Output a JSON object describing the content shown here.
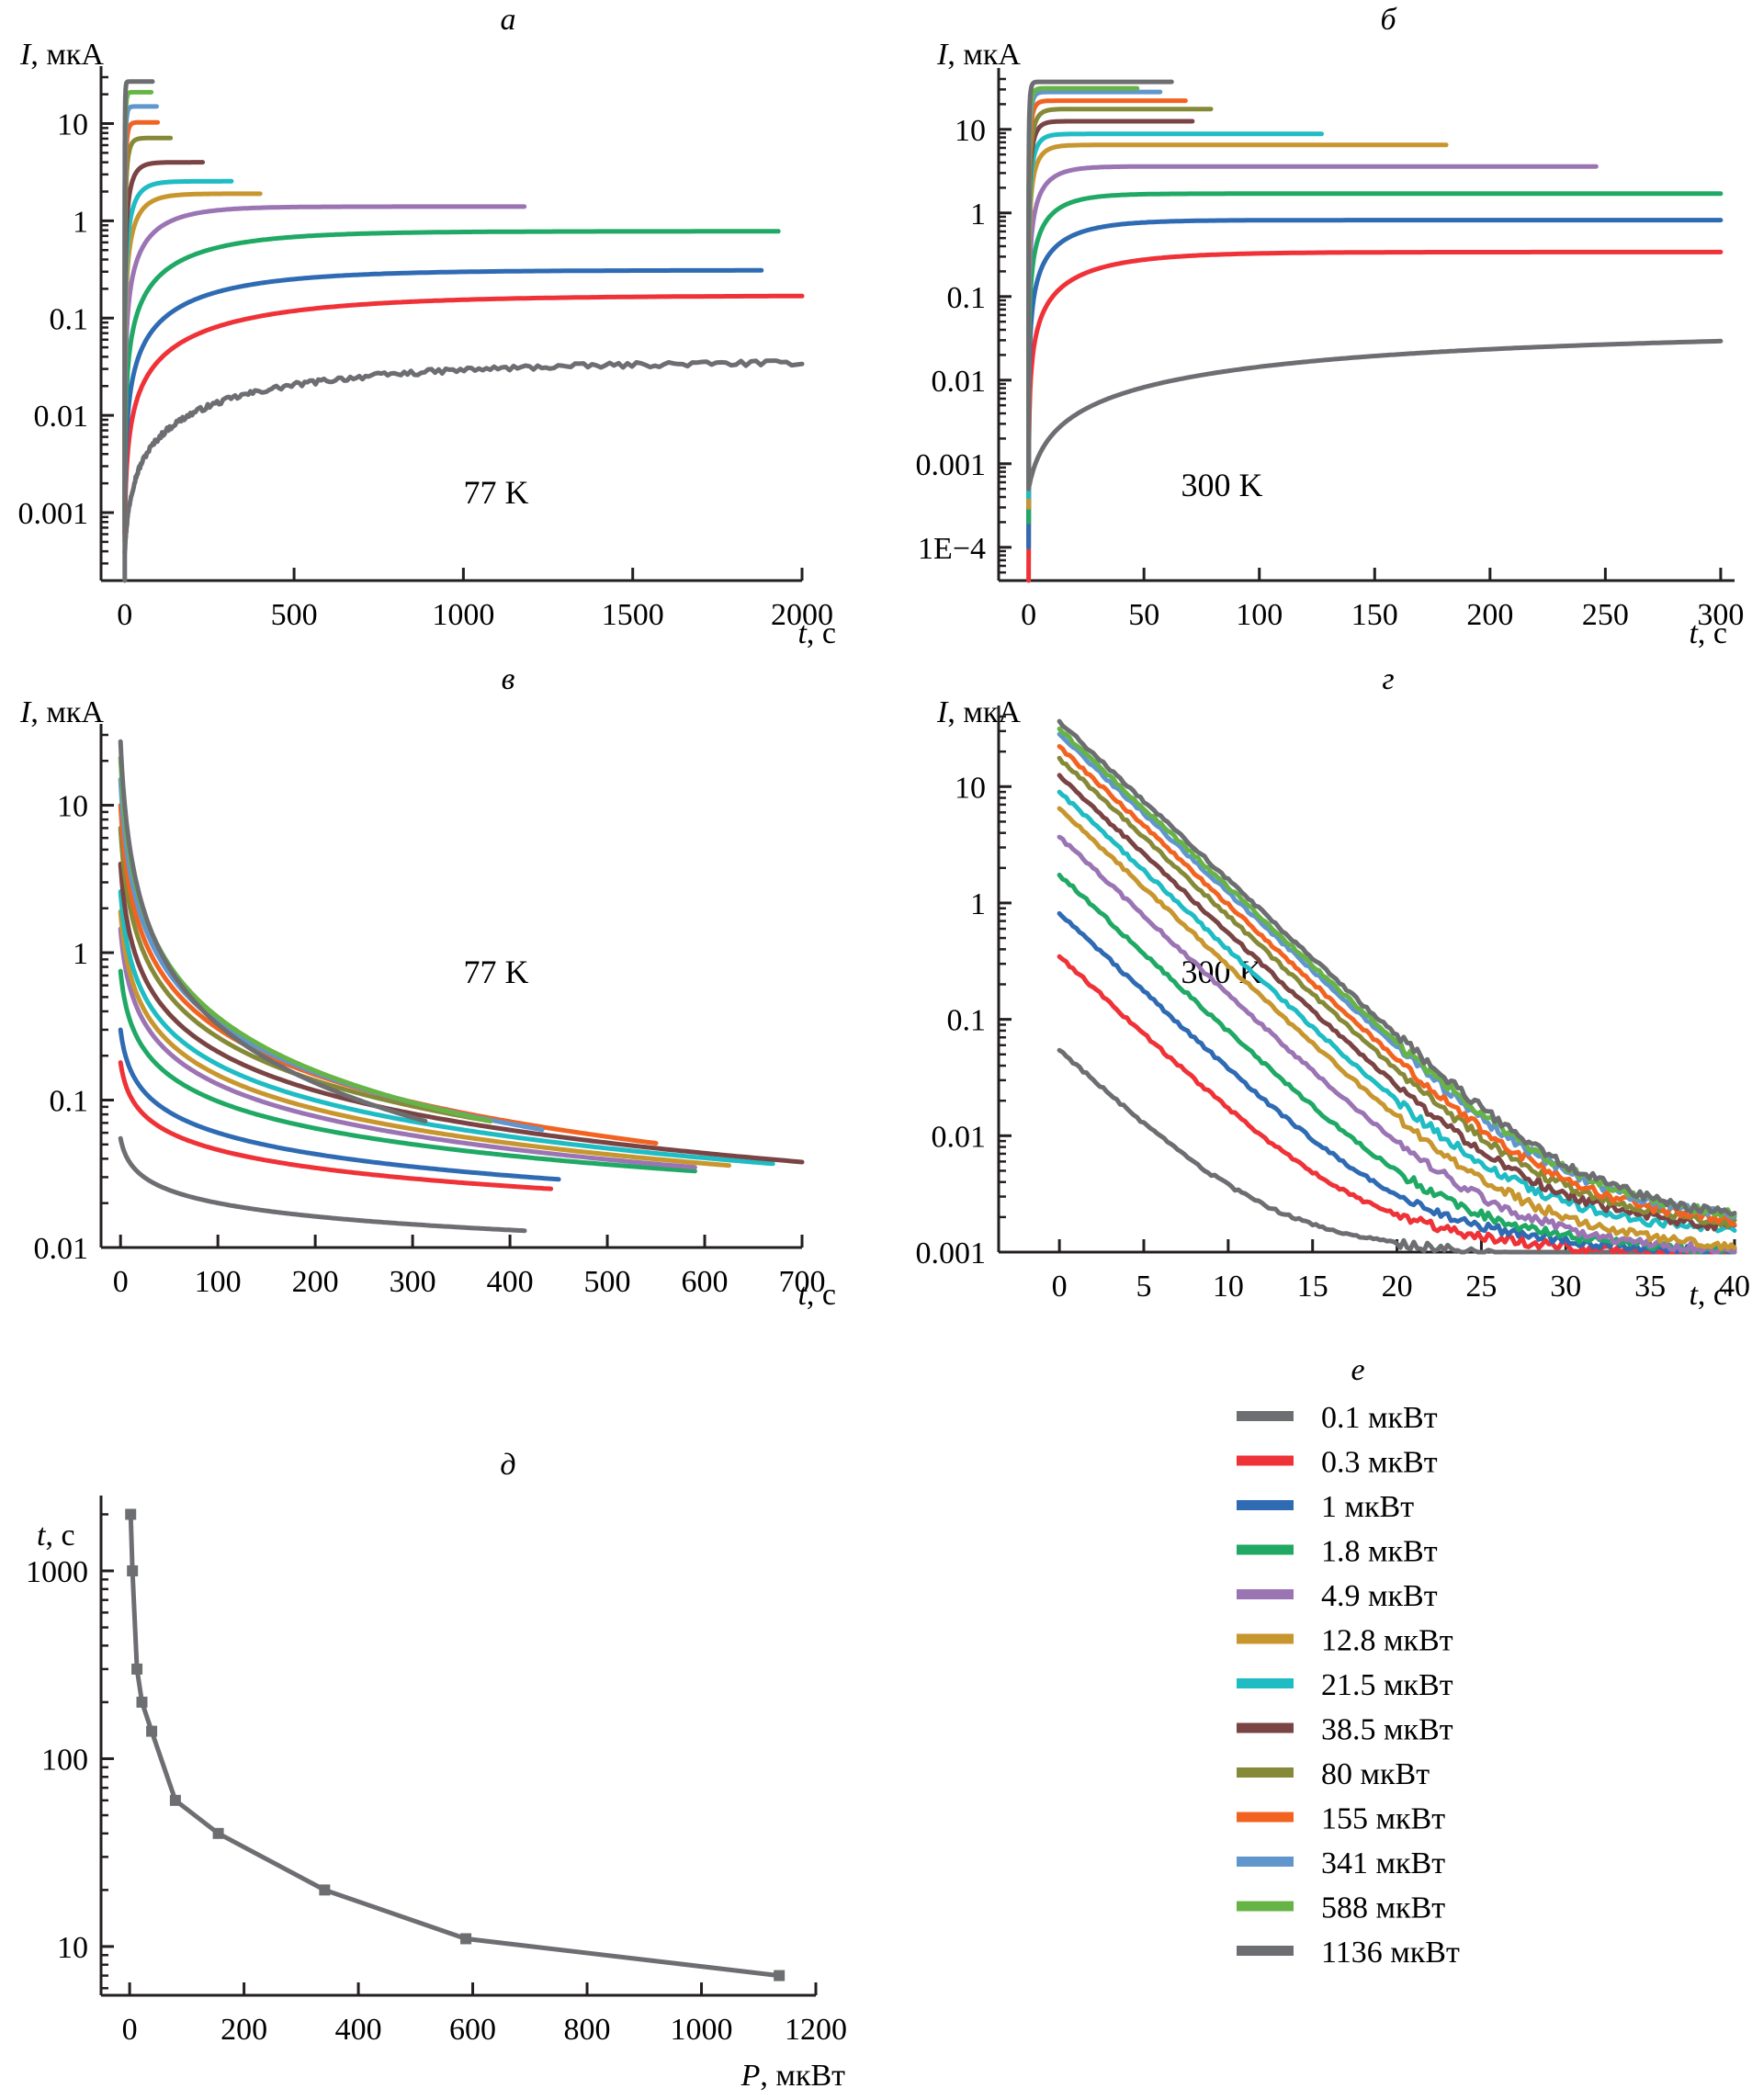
{
  "legend": {
    "panel_letter": "е",
    "items": [
      {
        "label": "0.1 мкВт",
        "color": "#6d6e71"
      },
      {
        "label": "0.3 мкВт",
        "color": "#ef3237"
      },
      {
        "label": "1 мкВт",
        "color": "#2f6bb3"
      },
      {
        "label": "1.8 мкВт",
        "color": "#1fa964"
      },
      {
        "label": "4.9 мкВт",
        "color": "#9b74b4"
      },
      {
        "label": "12.8 мкВт",
        "color": "#c8962e"
      },
      {
        "label": "21.5 мкВт",
        "color": "#1fbcc4"
      },
      {
        "label": "38.5 мкВт",
        "color": "#7a4444"
      },
      {
        "label": "80 мкВт",
        "color": "#868a38"
      },
      {
        "label": "155 мкВт",
        "color": "#f26322"
      },
      {
        "label": "341 мкВт",
        "color": "#6196cd"
      },
      {
        "label": "588 мкВт",
        "color": "#67b446"
      },
      {
        "label": "1136 мкВт",
        "color": "#6d6e71"
      }
    ]
  },
  "chart_data": [
    {
      "id": "a",
      "panel_letter": "а",
      "type": "line",
      "title": "",
      "annotation": "77 K",
      "ylabel_var": "I",
      "ylabel_unit": ", мкА",
      "xlabel_var": "t",
      "xlabel_unit": ", с",
      "yscale": "log",
      "ylim": [
        0.0002,
        30
      ],
      "xlim": [
        -70,
        2000
      ],
      "xticks": [
        0,
        500,
        1000,
        1500,
        2000
      ],
      "xtick_labels": [
        "0",
        "500",
        "1000",
        "1500",
        "2000"
      ],
      "yticks": [
        0.001,
        0.01,
        0.1,
        1,
        10
      ],
      "ytick_labels": [
        "0.001",
        "0.01",
        "0.1",
        "1",
        "10"
      ],
      "model": "rise",
      "series": [
        {
          "name": "0.1 мкВт",
          "plateau": 0.036,
          "tau": 600,
          "t_end": 2000,
          "i0": 0.0004
        },
        {
          "name": "0.3 мкВт",
          "plateau": 0.17,
          "tau": 420,
          "t_end": 2000,
          "i0": 0.0006
        },
        {
          "name": "1 мкВт",
          "plateau": 0.31,
          "tau": 300,
          "t_end": 1880,
          "i0": 0.0007
        },
        {
          "name": "1.8 мкВт",
          "plateau": 0.78,
          "tau": 240,
          "t_end": 1930,
          "i0": 0.0008
        },
        {
          "name": "4.9 мкВт",
          "plateau": 1.4,
          "tau": 110,
          "t_end": 1180,
          "i0": 0.0009
        },
        {
          "name": "12.8 мкВт",
          "plateau": 1.9,
          "tau": 45,
          "t_end": 400,
          "i0": 0.001
        },
        {
          "name": "21.5 мкВт",
          "plateau": 2.55,
          "tau": 32,
          "t_end": 315,
          "i0": 0.001
        },
        {
          "name": "38.5 мкВт",
          "plateau": 4.0,
          "tau": 22,
          "t_end": 230,
          "i0": 0.001
        },
        {
          "name": "80 мкВт",
          "plateau": 7.1,
          "tau": 10,
          "t_end": 135,
          "i0": 0.0005
        },
        {
          "name": "155 мкВт",
          "plateau": 10.3,
          "tau": 6,
          "t_end": 97,
          "i0": 0.0006
        },
        {
          "name": "341 мкВт",
          "plateau": 15,
          "tau": 4,
          "t_end": 94,
          "i0": 0.0008
        },
        {
          "name": "588 мкВт",
          "plateau": 21,
          "tau": 3,
          "t_end": 78,
          "i0": 0.0008
        },
        {
          "name": "1136 мкВт",
          "plateau": 27,
          "tau": 1.5,
          "t_end": 82,
          "i0": 0.0002
        }
      ]
    },
    {
      "id": "b",
      "panel_letter": "б",
      "type": "line",
      "title": "",
      "annotation": "300 K",
      "ylabel_var": "I",
      "ylabel_unit": ", мкА",
      "xlabel_var": "t",
      "xlabel_unit": ", с",
      "yscale": "log",
      "ylim": [
        4e-05,
        40
      ],
      "xlim": [
        -13,
        306
      ],
      "xticks": [
        0,
        50,
        100,
        150,
        200,
        250,
        300
      ],
      "xtick_labels": [
        "0",
        "50",
        "100",
        "150",
        "200",
        "250",
        "300"
      ],
      "yticks": [
        0.0001,
        0.001,
        0.01,
        0.1,
        1,
        10
      ],
      "ytick_labels": [
        "1E−4",
        "0.001",
        "0.01",
        "0.1",
        "1",
        "10"
      ],
      "model": "rise",
      "series": [
        {
          "name": "0.1 мкВт",
          "plateau": 0.04,
          "tau": 230,
          "t_end": 300,
          "i0": 0.0005
        },
        {
          "name": "0.3 мкВт",
          "plateau": 0.34,
          "tau": 30,
          "t_end": 300,
          "i0": 4e-05
        },
        {
          "name": "1 мкВт",
          "plateau": 0.82,
          "tau": 18,
          "t_end": 300,
          "i0": 0.0001
        },
        {
          "name": "1.8 мкВт",
          "plateau": 1.7,
          "tau": 12,
          "t_end": 300,
          "i0": 0.0002
        },
        {
          "name": "4.9 мкВт",
          "plateau": 3.6,
          "tau": 8,
          "t_end": 246,
          "i0": 0.0003
        },
        {
          "name": "12.8 мкВт",
          "plateau": 6.5,
          "tau": 4,
          "t_end": 181,
          "i0": 0.0003
        },
        {
          "name": "21.5 мкВт",
          "plateau": 8.8,
          "tau": 3,
          "t_end": 127,
          "i0": 0.0004
        },
        {
          "name": "38.5 мкВт",
          "plateau": 12.5,
          "tau": 2.5,
          "t_end": 71,
          "i0": 0.0005
        },
        {
          "name": "80 мкВт",
          "plateau": 17.5,
          "tau": 2.5,
          "t_end": 79,
          "i0": 0.0005
        },
        {
          "name": "155 мкВт",
          "plateau": 22,
          "tau": 1.5,
          "t_end": 68,
          "i0": 0.0005
        },
        {
          "name": "341 мкВт",
          "plateau": 28,
          "tau": 1.2,
          "t_end": 57,
          "i0": 0.0005
        },
        {
          "name": "588 мкВт",
          "plateau": 31,
          "tau": 1,
          "t_end": 47,
          "i0": 0.0005
        },
        {
          "name": "1136 мкВт",
          "plateau": 37,
          "tau": 0.6,
          "t_end": 62,
          "i0": 0.0005
        }
      ]
    },
    {
      "id": "v",
      "panel_letter": "в",
      "type": "line",
      "title": "",
      "annotation": "77 K",
      "ylabel_var": "I",
      "ylabel_unit": ", мкА",
      "xlabel_var": "t",
      "xlabel_unit": ", с",
      "yscale": "log",
      "ylim": [
        0.01,
        30
      ],
      "xlim": [
        -20,
        700
      ],
      "xticks": [
        0,
        100,
        200,
        300,
        400,
        500,
        600,
        700
      ],
      "xtick_labels": [
        "0",
        "100",
        "200",
        "300",
        "400",
        "500",
        "600",
        "700"
      ],
      "yticks": [
        0.01,
        0.1,
        1,
        10
      ],
      "ytick_labels": [
        "0.01",
        "0.1",
        "1",
        "10"
      ],
      "model": "decay_power",
      "series": [
        {
          "name": "0.1 мкВт",
          "i_start": 0.055,
          "i_end": 0.013,
          "t_end": 415
        },
        {
          "name": "0.3 мкВт",
          "i_start": 0.18,
          "i_end": 0.025,
          "t_end": 442
        },
        {
          "name": "1 мкВт",
          "i_start": 0.3,
          "i_end": 0.029,
          "t_end": 450
        },
        {
          "name": "1.8 мкВт",
          "i_start": 0.75,
          "i_end": 0.033,
          "t_end": 590
        },
        {
          "name": "4.9 мкВт",
          "i_start": 1.45,
          "i_end": 0.035,
          "t_end": 590
        },
        {
          "name": "12.8 мкВт",
          "i_start": 1.9,
          "i_end": 0.036,
          "t_end": 625
        },
        {
          "name": "21.5 мкВт",
          "i_start": 2.6,
          "i_end": 0.037,
          "t_end": 670
        },
        {
          "name": "38.5 мкВт",
          "i_start": 4.0,
          "i_end": 0.038,
          "t_end": 700
        },
        {
          "name": "80 мкВт",
          "i_start": 7.0,
          "i_end": 0.072,
          "t_end": 380
        },
        {
          "name": "155 мкВт",
          "i_start": 10.0,
          "i_end": 0.051,
          "t_end": 550
        },
        {
          "name": "341 мкВт",
          "i_start": 15.0,
          "i_end": 0.063,
          "t_end": 433
        },
        {
          "name": "588 мкВт",
          "i_start": 21.0,
          "i_end": 0.072,
          "t_end": 380
        },
        {
          "name": "1136 мкВт",
          "i_start": 27.0,
          "i_end": 0.072,
          "t_end": 313
        }
      ]
    },
    {
      "id": "g",
      "panel_letter": "г",
      "type": "line",
      "title": "",
      "annotation": "300 K",
      "ylabel_var": "I",
      "ylabel_unit": ", мкА",
      "xlabel_var": "t",
      "xlabel_unit": ", с",
      "yscale": "log",
      "ylim": [
        0.001,
        40
      ],
      "xlim": [
        -3.6,
        40
      ],
      "xticks": [
        0,
        5,
        10,
        15,
        20,
        25,
        30,
        35,
        40
      ],
      "xtick_labels": [
        "0",
        "5",
        "10",
        "15",
        "20",
        "25",
        "30",
        "35",
        "40"
      ],
      "yticks": [
        0.001,
        0.01,
        0.1,
        1,
        10
      ],
      "ytick_labels": [
        "0.001",
        "0.01",
        "0.1",
        "1",
        "10"
      ],
      "model": "decay_noisy",
      "series": [
        {
          "name": "0.1 мкВт",
          "i_start": 0.055,
          "i_mid": 0.002,
          "i_end": 0.0008
        },
        {
          "name": "0.3 мкВт",
          "i_start": 0.35,
          "i_mid": 0.0028,
          "i_end": 0.0009
        },
        {
          "name": "1 мкВт",
          "i_start": 0.82,
          "i_mid": 0.003,
          "i_end": 0.001
        },
        {
          "name": "1.8 мкВт",
          "i_start": 1.75,
          "i_mid": 0.0032,
          "i_end": 0.001
        },
        {
          "name": "4.9 мкВт",
          "i_start": 3.7,
          "i_mid": 0.0036,
          "i_end": 0.001
        },
        {
          "name": "12.8 мкВт",
          "i_start": 6.5,
          "i_mid": 0.0042,
          "i_end": 0.0011
        },
        {
          "name": "21.5 мкВт",
          "i_start": 9.0,
          "i_mid": 0.0055,
          "i_end": 0.0015
        },
        {
          "name": "38.5 мкВт",
          "i_start": 12.5,
          "i_mid": 0.006,
          "i_end": 0.0016
        },
        {
          "name": "80 мкВт",
          "i_start": 17.5,
          "i_mid": 0.0065,
          "i_end": 0.0017
        },
        {
          "name": "155 мкВт",
          "i_start": 22.0,
          "i_mid": 0.007,
          "i_end": 0.0018
        },
        {
          "name": "341 мкВт",
          "i_start": 28.0,
          "i_mid": 0.0075,
          "i_end": 0.002
        },
        {
          "name": "588 мкВт",
          "i_start": 31.0,
          "i_mid": 0.0078,
          "i_end": 0.002
        },
        {
          "name": "1136 мкВт",
          "i_start": 36.0,
          "i_mid": 0.0078,
          "i_end": 0.002
        }
      ]
    },
    {
      "id": "d",
      "panel_letter": "д",
      "type": "line",
      "title": "",
      "annotation": "",
      "ylabel_var": "t",
      "ylabel_unit": ", с",
      "xlabel_var": "P",
      "xlabel_unit": ", мкВт",
      "yscale": "log",
      "ylim": [
        5.5,
        2200
      ],
      "xlim": [
        -50,
        1200
      ],
      "xticks": [
        0,
        200,
        400,
        600,
        800,
        1000,
        1200
      ],
      "xtick_labels": [
        "0",
        "200",
        "400",
        "600",
        "800",
        "1000",
        "1200"
      ],
      "yticks": [
        10,
        100,
        1000
      ],
      "ytick_labels": [
        "10",
        "100",
        "1000"
      ],
      "model": "points",
      "color": "#6d6e71",
      "x": [
        1.8,
        4.9,
        12.8,
        21.5,
        38.5,
        80,
        155,
        341,
        588,
        1136
      ],
      "y": [
        2000,
        1000,
        300,
        200,
        140,
        60,
        40,
        20,
        11,
        7
      ]
    }
  ]
}
